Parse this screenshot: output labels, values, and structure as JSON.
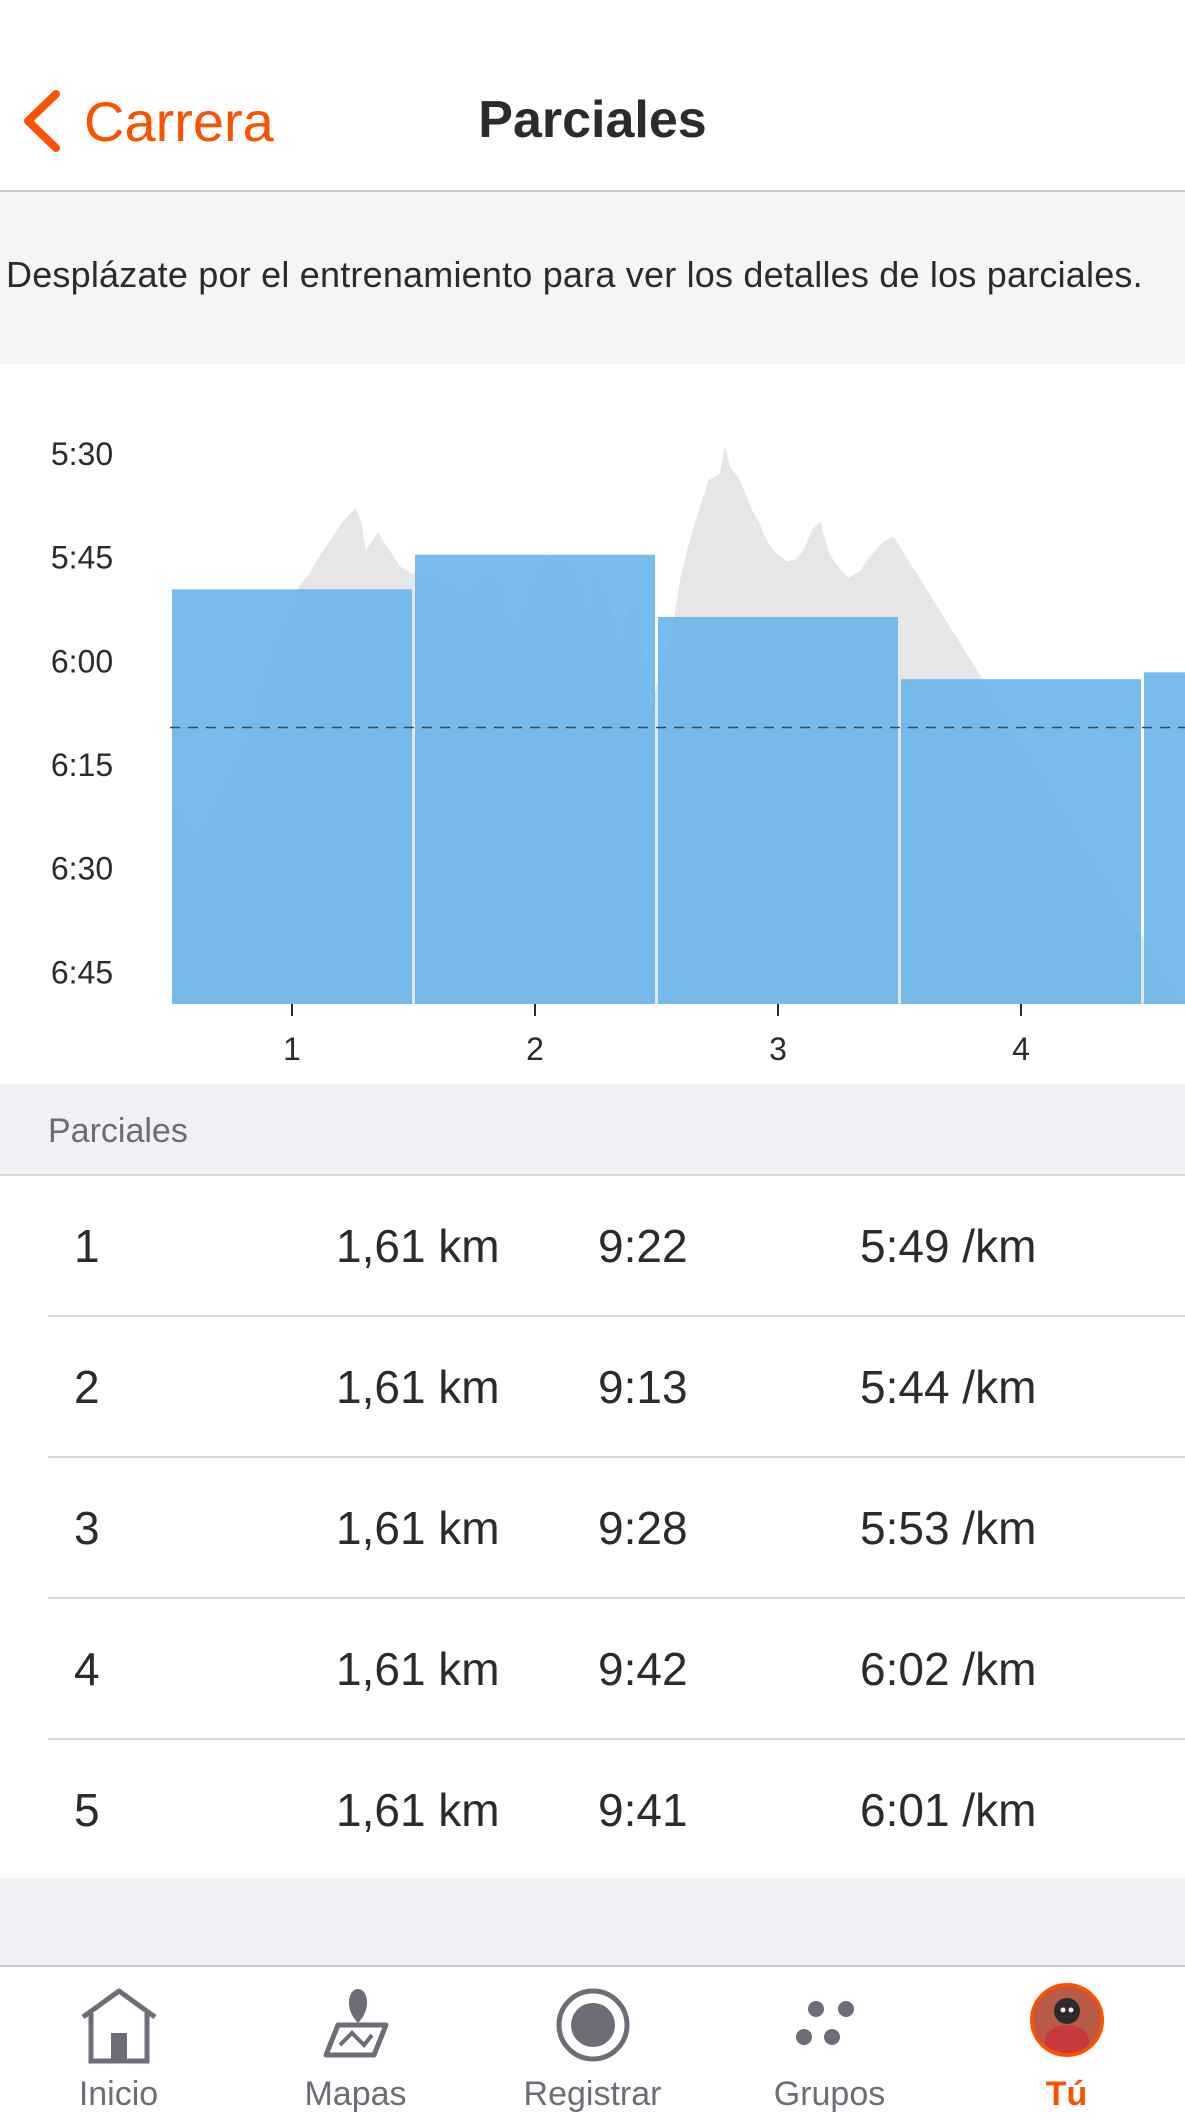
{
  "header": {
    "back_label": "Carrera",
    "title": "Parciales"
  },
  "hint": "Desplázate por el entrenamiento para ver los detalles de los parciales.",
  "colors": {
    "accent": "#fc5200",
    "bar": "#6cb6eb",
    "elevation": "#e6e6e6",
    "text": "#2a2a2f",
    "muted": "#6d6d78"
  },
  "chart_data": {
    "type": "bar",
    "categories": [
      "1",
      "2",
      "3",
      "4",
      "5"
    ],
    "values": [
      "5:49",
      "5:44",
      "5:53",
      "6:02",
      "6:01"
    ],
    "values_seconds": [
      349,
      344,
      353,
      362,
      361
    ],
    "y_tick_labels": [
      "5:30",
      "5:45",
      "6:00",
      "6:15",
      "6:30",
      "6:45"
    ],
    "y_ticks_seconds": [
      330,
      345,
      360,
      375,
      390,
      405
    ],
    "ylim_seconds": [
      330,
      409
    ],
    "y_inverted": true,
    "average_line_seconds": 369,
    "average_line_style": "dashed",
    "background_series": "pace profile area (gray/blue overlay)",
    "grid": false
  },
  "section_label": "Parciales",
  "splits": [
    {
      "num": "1",
      "distance": "1,61 km",
      "time": "9:22",
      "pace": "5:49 /km"
    },
    {
      "num": "2",
      "distance": "1,61 km",
      "time": "9:13",
      "pace": "5:44 /km"
    },
    {
      "num": "3",
      "distance": "1,61 km",
      "time": "9:28",
      "pace": "5:53 /km"
    },
    {
      "num": "4",
      "distance": "1,61 km",
      "time": "9:42",
      "pace": "6:02 /km"
    },
    {
      "num": "5",
      "distance": "1,61 km",
      "time": "9:41",
      "pace": "6:01 /km"
    }
  ],
  "tabs": [
    {
      "label": "Inicio",
      "icon": "home-icon",
      "active": false
    },
    {
      "label": "Mapas",
      "icon": "map-icon",
      "active": false
    },
    {
      "label": "Registrar",
      "icon": "record-icon",
      "active": false
    },
    {
      "label": "Grupos",
      "icon": "groups-icon",
      "active": false
    },
    {
      "label": "Tú",
      "icon": "profile-avatar",
      "active": true
    }
  ]
}
